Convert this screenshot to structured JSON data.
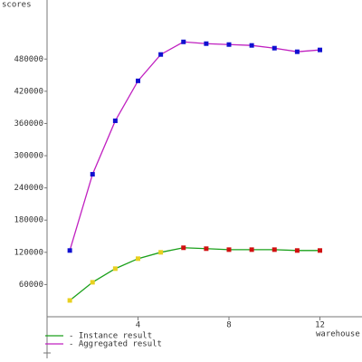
{
  "chart_data": {
    "type": "line",
    "ylabel": "scores",
    "xlabel": "warehouse",
    "x": [
      1,
      2,
      3,
      4,
      5,
      6,
      7,
      8,
      9,
      10,
      11,
      12
    ],
    "xlim": [
      0,
      13.85
    ],
    "xticks": [
      4,
      8,
      12
    ],
    "ylim": [
      0,
      590000
    ],
    "yticks": [
      60000,
      120000,
      180000,
      240000,
      300000,
      360000,
      420000,
      480000
    ],
    "series": [
      {
        "name": "- Instance result",
        "color": "#1aa01a",
        "marker_colors": [
          "#e8d020",
          "#e8d020",
          "#e8d020",
          "#e8d020",
          "#e8d020",
          "#d01010",
          "#d01010",
          "#d01010",
          "#d01010",
          "#d01010",
          "#d01010",
          "#d01010"
        ],
        "values": [
          30400,
          64200,
          89600,
          108200,
          120000,
          128500,
          126800,
          125000,
          125000,
          125000,
          123400,
          123400
        ]
      },
      {
        "name": "- Aggregated result",
        "color": "#c020c0",
        "marker_colors": [
          "#1010d0",
          "#1010d0",
          "#1010d0",
          "#1010d0",
          "#1010d0",
          "#1010d0",
          "#1010d0",
          "#1010d0",
          "#1010d0",
          "#1010d0",
          "#1010d0",
          "#1010d0"
        ],
        "values": [
          123400,
          265400,
          365000,
          439400,
          488500,
          512000,
          508700,
          507000,
          505400,
          500300,
          493600,
          497000
        ]
      }
    ]
  }
}
